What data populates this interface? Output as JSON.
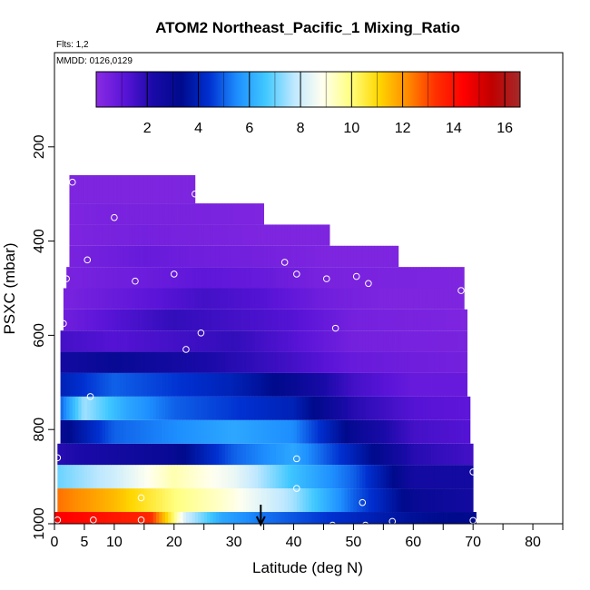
{
  "chart_data": {
    "type": "heatmap",
    "title": "ATOM2 Northeast_Pacific_1 Mixing_Ratio",
    "flights_label": "Flts: 1,2",
    "mmdd_label": "MMDD: 0126,0129",
    "xlabel": "Latitude (deg N)",
    "ylabel": "PSXC (mbar)",
    "xlim": [
      0,
      85
    ],
    "ylim": [
      1000,
      0
    ],
    "x_ticks": [
      0,
      5,
      10,
      20,
      30,
      40,
      50,
      60,
      70,
      80
    ],
    "x_tick_labels": [
      "0",
      "5",
      "10",
      "20",
      "30",
      "40",
      "50",
      "60",
      "70",
      "80"
    ],
    "y_ticks": [
      200,
      400,
      600,
      800,
      1000
    ],
    "y_tick_labels": [
      "200",
      "400",
      "600",
      "800",
      "1000"
    ],
    "colorbar": {
      "range": [
        0,
        16.6
      ],
      "ticks": [
        2,
        4,
        6,
        8,
        10,
        12,
        14,
        16
      ],
      "tick_labels": [
        "2",
        "4",
        "6",
        "8",
        "10",
        "12",
        "14",
        "16"
      ],
      "colors": [
        "#8a2be2",
        "#5a14d8",
        "#1a0aa8",
        "#000a8c",
        "#0030d0",
        "#1e8fff",
        "#40c8ff",
        "#bfe8ff",
        "#fffff0",
        "#ffff80",
        "#ffd700",
        "#ff8c00",
        "#ff3000",
        "#ff0000",
        "#c00000",
        "#a52a2a"
      ]
    },
    "layers": [
      {
        "p": [
          975,
          1000
        ],
        "lat": [
          0,
          70.5
        ],
        "stops": [
          [
            0,
            14.5
          ],
          [
            16,
            13.5
          ],
          [
            20,
            10
          ],
          [
            22,
            8
          ],
          [
            28,
            6
          ],
          [
            35,
            5.2
          ],
          [
            45,
            4.5
          ],
          [
            60,
            3.5
          ],
          [
            70.5,
            3.2
          ]
        ]
      },
      {
        "p": [
          925,
          975
        ],
        "lat": [
          0.5,
          70
        ],
        "stops": [
          [
            0.5,
            12.5
          ],
          [
            10,
            11.5
          ],
          [
            20,
            10
          ],
          [
            30,
            9
          ],
          [
            40,
            7.5
          ],
          [
            50,
            5
          ],
          [
            60,
            3
          ],
          [
            70,
            2.5
          ]
        ]
      },
      {
        "p": [
          875,
          925
        ],
        "lat": [
          0.5,
          70
        ],
        "stops": [
          [
            0.5,
            7
          ],
          [
            10,
            8
          ],
          [
            20,
            9.5
          ],
          [
            30,
            8.5
          ],
          [
            40,
            6.5
          ],
          [
            50,
            5
          ],
          [
            60,
            2.5
          ],
          [
            70,
            2.5
          ]
        ]
      },
      {
        "p": [
          830,
          875
        ],
        "lat": [
          0.5,
          70
        ],
        "stops": [
          [
            0.5,
            2
          ],
          [
            20,
            3
          ],
          [
            30,
            5
          ],
          [
            40,
            6
          ],
          [
            50,
            4
          ],
          [
            60,
            2
          ],
          [
            70,
            1.5
          ]
        ]
      },
      {
        "p": [
          780,
          830
        ],
        "lat": [
          1,
          69.5
        ],
        "stops": [
          [
            1,
            3
          ],
          [
            10,
            5
          ],
          [
            20,
            5.5
          ],
          [
            30,
            6
          ],
          [
            40,
            5.5
          ],
          [
            50,
            3
          ],
          [
            60,
            1.5
          ],
          [
            69.5,
            1.2
          ]
        ]
      },
      {
        "p": [
          730,
          780
        ],
        "lat": [
          1,
          69.5
        ],
        "stops": [
          [
            1,
            5
          ],
          [
            5,
            7.5
          ],
          [
            12,
            6
          ],
          [
            20,
            5
          ],
          [
            30,
            4.5
          ],
          [
            40,
            4
          ],
          [
            50,
            2
          ],
          [
            60,
            1.2
          ],
          [
            69.5,
            1
          ]
        ]
      },
      {
        "p": [
          680,
          730
        ],
        "lat": [
          1,
          69
        ],
        "stops": [
          [
            1,
            4
          ],
          [
            10,
            5
          ],
          [
            20,
            4.5
          ],
          [
            30,
            4
          ],
          [
            40,
            3
          ],
          [
            50,
            1.5
          ],
          [
            60,
            0.8
          ],
          [
            69,
            0.8
          ]
        ]
      },
      {
        "p": [
          635,
          680
        ],
        "lat": [
          1,
          69
        ],
        "stops": [
          [
            1,
            2.5
          ],
          [
            10,
            3
          ],
          [
            20,
            2.5
          ],
          [
            30,
            2
          ],
          [
            40,
            1.5
          ],
          [
            50,
            0.8
          ],
          [
            69,
            0.5
          ]
        ]
      },
      {
        "p": [
          590,
          635
        ],
        "lat": [
          1,
          69
        ],
        "stops": [
          [
            1,
            1.5
          ],
          [
            10,
            1.2
          ],
          [
            20,
            1.5
          ],
          [
            30,
            1.8
          ],
          [
            40,
            1.2
          ],
          [
            50,
            0.5
          ],
          [
            69,
            0.4
          ]
        ]
      },
      {
        "p": [
          545,
          590
        ],
        "lat": [
          1.5,
          69
        ],
        "stops": [
          [
            1.5,
            0.6
          ],
          [
            10,
            1.2
          ],
          [
            20,
            1.8
          ],
          [
            30,
            1.5
          ],
          [
            40,
            1.2
          ],
          [
            50,
            0.5
          ],
          [
            69,
            0.3
          ]
        ]
      },
      {
        "p": [
          500,
          545
        ],
        "lat": [
          1.5,
          68.5
        ],
        "stops": [
          [
            1.5,
            0.4
          ],
          [
            15,
            1
          ],
          [
            25,
            1.5
          ],
          [
            35,
            1.2
          ],
          [
            45,
            0.6
          ],
          [
            55,
            0.3
          ],
          [
            68.5,
            0.3
          ]
        ]
      },
      {
        "p": [
          455,
          500
        ],
        "lat": [
          2,
          68.5
        ],
        "stops": [
          [
            2,
            0.4
          ],
          [
            15,
            0.7
          ],
          [
            25,
            1
          ],
          [
            35,
            0.8
          ],
          [
            45,
            0.4
          ],
          [
            68.5,
            0.3
          ]
        ]
      },
      {
        "p": [
          410,
          455
        ],
        "lat": [
          2.5,
          57.5
        ],
        "stops": [
          [
            2.5,
            0.4
          ],
          [
            15,
            0.8
          ],
          [
            25,
            0.6
          ],
          [
            35,
            0.5
          ],
          [
            45,
            0.3
          ],
          [
            57.5,
            0.3
          ]
        ]
      },
      {
        "p": [
          365,
          410
        ],
        "lat": [
          2.5,
          46
        ],
        "stops": [
          [
            2.5,
            0.3
          ],
          [
            15,
            0.5
          ],
          [
            25,
            0.4
          ],
          [
            35,
            0.3
          ],
          [
            46,
            0.3
          ]
        ]
      },
      {
        "p": [
          320,
          365
        ],
        "lat": [
          2.5,
          35
        ],
        "stops": [
          [
            2.5,
            0.3
          ],
          [
            10,
            0.4
          ],
          [
            20,
            0.4
          ],
          [
            35,
            0.3
          ]
        ]
      },
      {
        "p": [
          260,
          320
        ],
        "lat": [
          2.5,
          23.5
        ],
        "stops": [
          [
            2.5,
            0.3
          ],
          [
            23.5,
            0.3
          ]
        ]
      }
    ],
    "sample_points": [
      [
        0.5,
        992
      ],
      [
        6.5,
        992
      ],
      [
        14.5,
        992
      ],
      [
        21,
        998
      ],
      [
        46.5,
        1003
      ],
      [
        52,
        1003
      ],
      [
        56.5,
        995
      ],
      [
        70,
        993
      ],
      [
        14.5,
        945
      ],
      [
        40.5,
        925
      ],
      [
        51.5,
        955
      ],
      [
        0.5,
        860
      ],
      [
        40.5,
        862
      ],
      [
        70,
        890
      ],
      [
        6,
        730
      ],
      [
        1.5,
        575
      ],
      [
        24.5,
        595
      ],
      [
        22,
        630
      ],
      [
        47,
        585
      ],
      [
        2,
        480
      ],
      [
        13.5,
        485
      ],
      [
        20,
        470
      ],
      [
        40.5,
        470
      ],
      [
        45.5,
        480
      ],
      [
        50.5,
        475
      ],
      [
        52.5,
        490
      ],
      [
        68,
        505
      ],
      [
        5.5,
        440
      ],
      [
        38.5,
        445
      ],
      [
        10,
        350
      ],
      [
        3,
        275
      ],
      [
        23.5,
        300
      ]
    ],
    "arrow_marker": {
      "lat": 34.5,
      "p": 1000
    }
  }
}
